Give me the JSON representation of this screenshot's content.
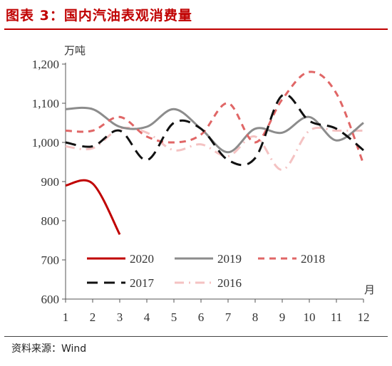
{
  "header": {
    "title": "图表 3：国内汽油表观消费量"
  },
  "footer": {
    "source": "资料来源：Wind"
  },
  "chart_data": {
    "type": "line",
    "title": "图表 3：国内汽油表观消费量",
    "ylabel": "万吨",
    "xlabel": "月",
    "x": [
      1,
      2,
      3,
      4,
      5,
      6,
      7,
      8,
      9,
      10,
      11,
      12
    ],
    "x_tick_labels": [
      "1",
      "2",
      "3",
      "4",
      "5",
      "6",
      "7",
      "8",
      "9",
      "10",
      "11",
      "12"
    ],
    "ylim": [
      600,
      1200
    ],
    "y_ticks": [
      600,
      700,
      800,
      900,
      1000,
      1100,
      1200
    ],
    "y_tick_labels": [
      "600",
      "700",
      "800",
      "900",
      "1,000",
      "1,100",
      "1,200"
    ],
    "grid": false,
    "legend_placement": "bottom-left inside plot",
    "series": [
      {
        "name": "2020",
        "color": "#c00000",
        "dash": "solid",
        "values": [
          890,
          895,
          765,
          null,
          null,
          null,
          null,
          null,
          null,
          null,
          null,
          null
        ]
      },
      {
        "name": "2019",
        "color": "#8c8c8c",
        "dash": "solid",
        "values": [
          1085,
          1085,
          1040,
          1040,
          1085,
          1035,
          975,
          1035,
          1025,
          1065,
          1005,
          1050
        ]
      },
      {
        "name": "2018",
        "color": "#e06666",
        "dash": "medium",
        "values": [
          1030,
          1030,
          1065,
          1015,
          1000,
          1020,
          1100,
          1000,
          1110,
          1180,
          1125,
          945
        ]
      },
      {
        "name": "2017",
        "color": "#111111",
        "dash": "long",
        "values": [
          1000,
          990,
          1030,
          955,
          1050,
          1035,
          955,
          960,
          1120,
          1055,
          1035,
          980
        ]
      },
      {
        "name": "2016",
        "color": "#f4c2c2",
        "dash": "dashdot",
        "values": [
          990,
          985,
          1035,
          1025,
          980,
          995,
          965,
          1015,
          930,
          1030,
          1030,
          1030
        ]
      }
    ]
  }
}
